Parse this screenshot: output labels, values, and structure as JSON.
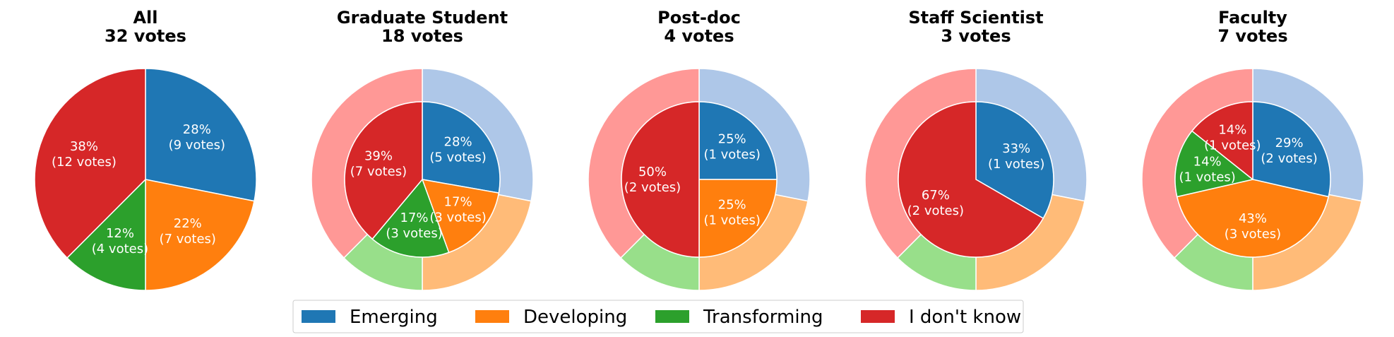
{
  "chart_data": [
    {
      "type": "pie",
      "title": "All\n32 votes",
      "title_lines": [
        "All",
        "32 votes"
      ],
      "categories": [
        "Emerging",
        "Developing",
        "Transforming",
        "I don't know"
      ],
      "values": [
        9,
        7,
        4,
        12
      ],
      "labels": [
        "28%\n(9 votes)",
        "22%\n(7 votes)",
        "12%\n(4 votes)",
        "38%\n(12 votes)"
      ],
      "outer_ring": false
    },
    {
      "type": "pie",
      "title": "Graduate Student\n18 votes",
      "title_lines": [
        "Graduate Student",
        "18 votes"
      ],
      "categories": [
        "Emerging",
        "Developing",
        "Transforming",
        "I don't know"
      ],
      "values": [
        5,
        3,
        3,
        7
      ],
      "labels": [
        "28%\n(5 votes)",
        "17%\n(3 votes)",
        "17%\n(3 votes)",
        "39%\n(7 votes)"
      ],
      "outer_ring": true
    },
    {
      "type": "pie",
      "title": "Post-doc\n4 votes",
      "title_lines": [
        "Post-doc",
        "4 votes"
      ],
      "categories": [
        "Emerging",
        "Developing",
        "Transforming",
        "I don't know"
      ],
      "values": [
        1,
        1,
        0,
        2
      ],
      "labels": [
        "25%\n(1 votes)",
        "25%\n(1 votes)",
        "",
        "50%\n(2 votes)"
      ],
      "outer_ring": true
    },
    {
      "type": "pie",
      "title": "Staff Scientist\n3 votes",
      "title_lines": [
        "Staff Scientist",
        "3 votes"
      ],
      "categories": [
        "Emerging",
        "Developing",
        "Transforming",
        "I don't know"
      ],
      "values": [
        1,
        0,
        0,
        2
      ],
      "labels": [
        "33%\n(1 votes)",
        "",
        "",
        "67%\n(2 votes)"
      ],
      "outer_ring": true
    },
    {
      "type": "pie",
      "title": "Faculty\n7 votes",
      "title_lines": [
        "Faculty",
        "7 votes"
      ],
      "categories": [
        "Emerging",
        "Developing",
        "Transforming",
        "I don't know"
      ],
      "values": [
        2,
        3,
        1,
        1
      ],
      "labels": [
        "29%\n(2 votes)",
        "43%\n(3 votes)",
        "14%\n(1 votes)",
        "14%\n(1 votes)"
      ],
      "outer_ring": true
    }
  ],
  "outer_ring_reference": {
    "values": [
      9,
      7,
      4,
      12
    ]
  },
  "legend": {
    "placement": "bottom-center",
    "items": [
      {
        "label": "Emerging",
        "color": "#1f77b4",
        "light_color": "#aec7e8"
      },
      {
        "label": "Developing",
        "color": "#ff7f0e",
        "light_color": "#ffbb78"
      },
      {
        "label": "Transforming",
        "color": "#2ca02c",
        "light_color": "#98df8a"
      },
      {
        "label": "I don't know",
        "color": "#d62728",
        "light_color": "#ff9896"
      }
    ]
  }
}
